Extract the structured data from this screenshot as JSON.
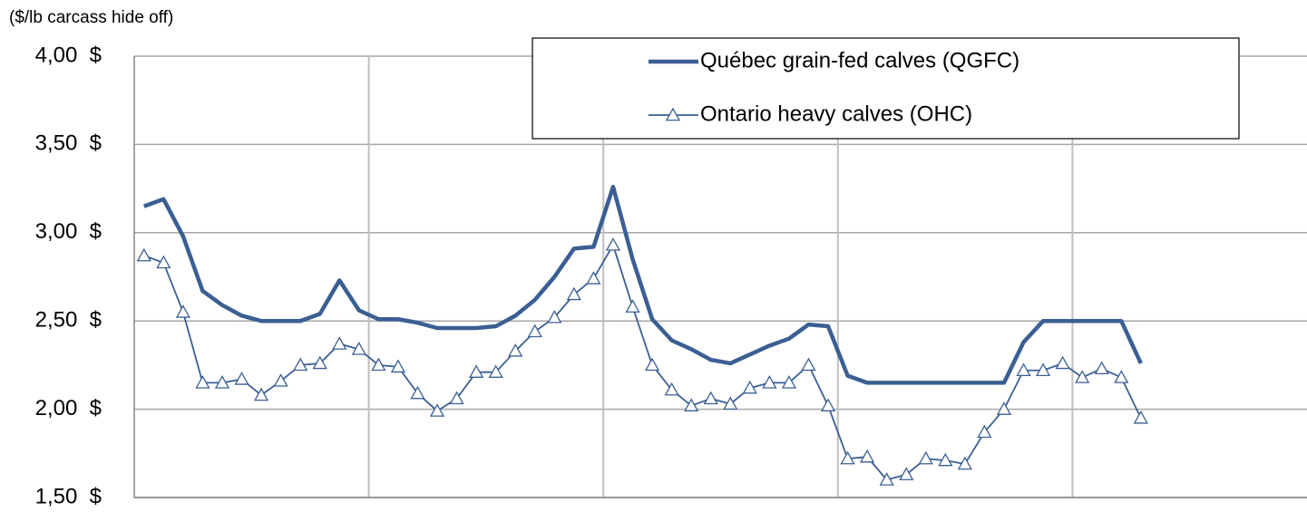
{
  "chart_data": {
    "type": "line",
    "y_axis_label": "($/lb carcass hide off)",
    "categories": [
      null,
      null,
      null,
      null,
      null,
      null,
      null,
      null,
      null,
      null,
      null,
      null,
      null,
      null,
      null,
      null,
      null,
      null,
      null,
      null,
      null,
      null,
      null,
      null,
      null,
      null,
      null,
      null,
      null,
      null,
      null,
      null,
      null,
      null,
      null,
      null,
      null,
      null,
      null,
      null,
      null,
      null,
      null,
      null,
      null,
      null,
      null,
      null,
      null,
      null,
      null,
      null,
      null,
      null,
      null,
      null,
      null,
      null,
      null,
      null
    ],
    "series": [
      {
        "name": "Québec grain-fed calves (QGFC)",
        "color": "#3b5f93",
        "marker": "none",
        "values": [
          3.15,
          3.19,
          2.98,
          2.67,
          2.59,
          2.53,
          2.5,
          2.5,
          2.5,
          2.54,
          2.73,
          2.56,
          2.51,
          2.51,
          2.49,
          2.46,
          2.46,
          2.46,
          2.47,
          2.53,
          2.62,
          2.75,
          2.91,
          2.92,
          3.26,
          2.85,
          2.51,
          2.39,
          2.34,
          2.28,
          2.26,
          2.31,
          2.36,
          2.4,
          2.48,
          2.47,
          2.19,
          2.15,
          2.15,
          2.15,
          2.15,
          2.15,
          2.15,
          2.15,
          2.15,
          2.38,
          2.5,
          2.5,
          2.5,
          2.5,
          2.5,
          2.26,
          null,
          null,
          null,
          null,
          null,
          null,
          null,
          null
        ]
      },
      {
        "name": "Ontario heavy calves (OHC)",
        "color": "#3b5f93",
        "marker": "triangle",
        "values": [
          2.87,
          2.83,
          2.55,
          2.15,
          2.15,
          2.17,
          2.08,
          2.16,
          2.25,
          2.26,
          2.37,
          2.34,
          2.25,
          2.24,
          2.09,
          1.99,
          2.06,
          2.21,
          2.21,
          2.33,
          2.44,
          2.52,
          2.65,
          2.74,
          2.93,
          2.58,
          2.25,
          2.11,
          2.02,
          2.06,
          2.03,
          2.12,
          2.15,
          2.15,
          2.25,
          2.02,
          1.72,
          1.73,
          1.6,
          1.63,
          1.72,
          1.71,
          1.69,
          1.87,
          2.0,
          2.22,
          2.22,
          2.26,
          2.18,
          2.23,
          2.18,
          1.95,
          null,
          null,
          null,
          null,
          null,
          null,
          null,
          null
        ]
      }
    ],
    "ylim": [
      1.5,
      4.0
    ],
    "yticks": [
      {
        "value": 1.5,
        "label": "1,50  $"
      },
      {
        "value": 2.0,
        "label": "2,00  $"
      },
      {
        "value": 2.5,
        "label": "2,50  $"
      },
      {
        "value": 3.0,
        "label": "3,00  $"
      },
      {
        "value": 3.5,
        "label": "3,50  $"
      },
      {
        "value": 4.0,
        "label": "4,00  $"
      }
    ],
    "grid": true,
    "legend": "top-right"
  }
}
